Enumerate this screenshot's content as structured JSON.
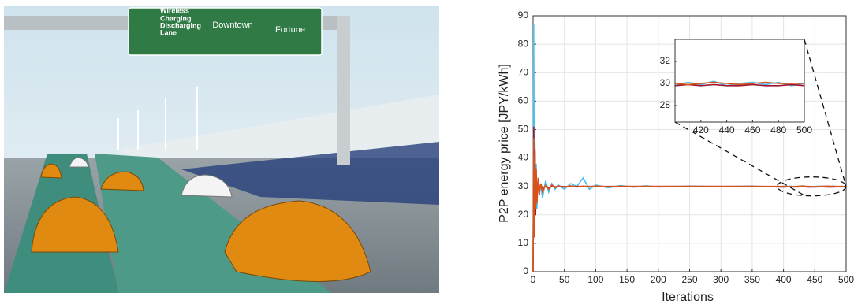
{
  "photo": {
    "sign": {
      "lane": [
        "Wireless",
        "Charging",
        "Discharging",
        "Lane"
      ],
      "left": "Downtown",
      "right": "Fortune"
    }
  },
  "chart_data": {
    "type": "line",
    "xlabel": "Iterations",
    "ylabel": "P2P energy price [JPY/kWh]",
    "xlim": [
      0,
      500
    ],
    "xticks": [
      0,
      50,
      100,
      150,
      200,
      250,
      300,
      350,
      400,
      450,
      500
    ],
    "ylim": [
      0,
      90
    ],
    "yticks": [
      0,
      10,
      20,
      30,
      40,
      50,
      60,
      70,
      80,
      90
    ],
    "grid": true,
    "x": [
      0,
      1,
      2,
      3,
      4,
      5,
      6,
      8,
      10,
      12,
      15,
      20,
      25,
      30,
      35,
      40,
      50,
      60,
      70,
      80,
      90,
      100,
      120,
      140,
      160,
      180,
      200,
      250,
      300,
      350,
      400,
      410,
      420,
      430,
      440,
      450,
      460,
      470,
      480,
      490,
      500
    ],
    "series": [
      {
        "color": "#4dbeee",
        "values": [
          0,
          87,
          20,
          45,
          25,
          38,
          22,
          33,
          27,
          31,
          26,
          32,
          28,
          31,
          29,
          30.5,
          29,
          31,
          30,
          33,
          29,
          30.5,
          29.5,
          30.3,
          29.7,
          30.2,
          29.8,
          30.1,
          29.9,
          30.1,
          29.8,
          30.1,
          29.9,
          30.2,
          29.8,
          30.0,
          30.1,
          29.9,
          30.1,
          29.8,
          30.0
        ]
      },
      {
        "color": "#a2142f",
        "values": [
          0,
          51,
          15,
          43,
          20,
          34,
          25,
          32,
          28,
          31,
          29,
          30,
          29.5,
          30.2,
          29.8,
          30.1,
          29.9,
          30,
          30,
          30,
          30,
          30,
          30,
          30,
          30,
          30,
          30,
          30,
          30,
          30,
          29.8,
          29.9,
          29.8,
          29.9,
          29.8,
          29.8,
          29.9,
          29.8,
          29.8,
          29.9,
          29.8
        ]
      },
      {
        "color": "#d95319",
        "values": [
          0,
          47,
          12,
          40,
          22,
          36,
          24,
          33,
          27,
          31,
          28,
          30.5,
          29,
          30.5,
          29.5,
          30.2,
          29.7,
          30.2,
          29.8,
          30.1,
          29.9,
          30.1,
          29.9,
          30,
          30,
          30,
          30,
          30,
          30,
          30,
          30,
          29.9,
          30,
          30.1,
          30,
          29.9,
          30,
          30.1,
          30,
          30,
          30
        ]
      }
    ],
    "inset": {
      "xlim": [
        400,
        500
      ],
      "xticks": [
        420,
        440,
        460,
        480,
        500
      ],
      "ylim": [
        26.5,
        34
      ],
      "yticks": [
        28,
        30,
        32
      ]
    }
  }
}
